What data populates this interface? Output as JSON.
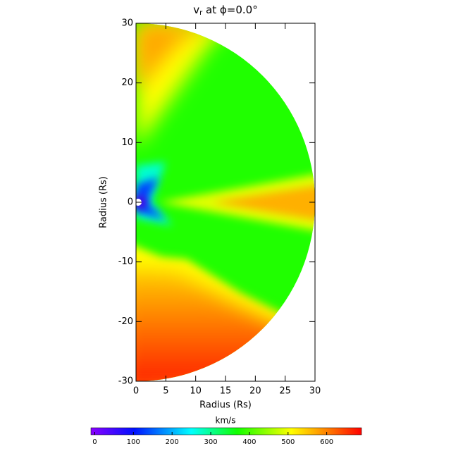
{
  "chart_data": {
    "type": "heatmap",
    "title": {
      "main": "v",
      "sub": "r",
      "rest": " at ϕ=0.0°"
    },
    "x_label": "Radius (Rs)",
    "y_label": "Radius (Rs)",
    "xlim": [
      0,
      30
    ],
    "xticks": [
      0,
      5,
      10,
      15,
      20,
      25,
      30
    ],
    "ylim": [
      -30,
      30
    ],
    "yticks": [
      -30,
      -20,
      -10,
      0,
      10,
      20,
      30
    ],
    "colorbar": {
      "label": "km/s",
      "clim": [
        -10,
        690
      ],
      "ticks": [
        0,
        100,
        200,
        300,
        400,
        500,
        600
      ]
    }
  }
}
